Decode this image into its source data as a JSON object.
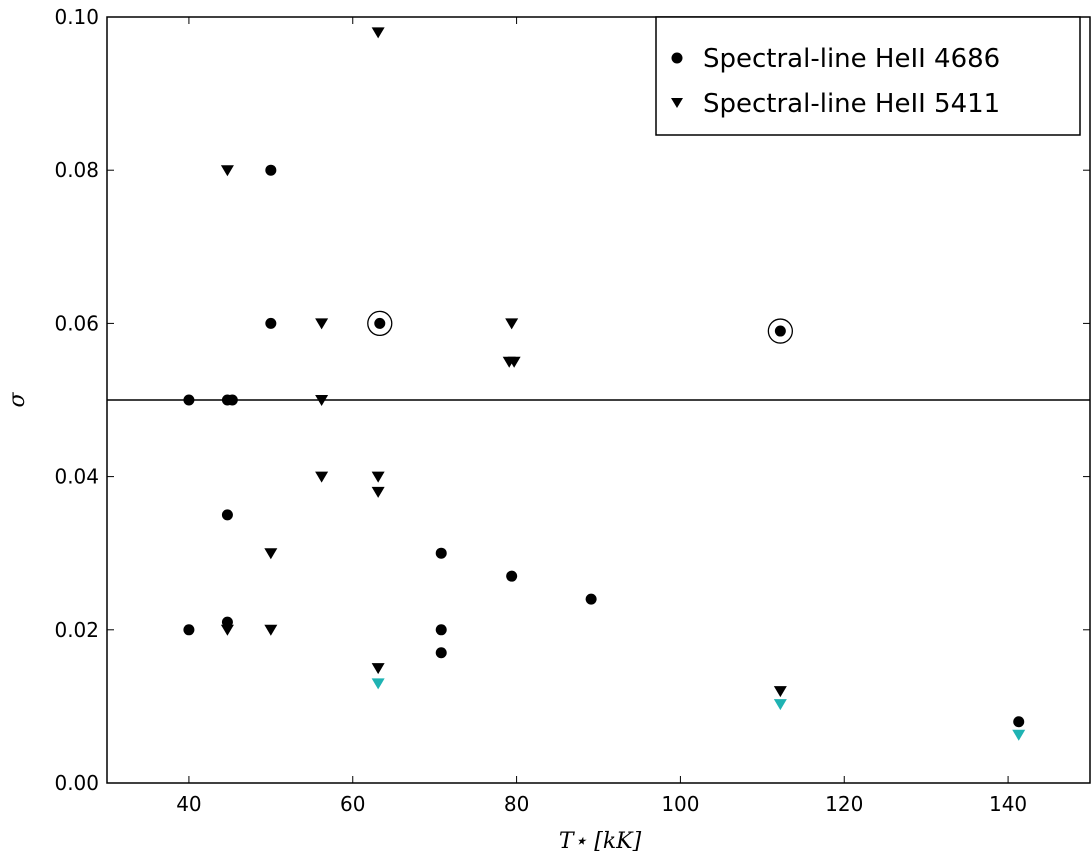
{
  "chart_data": {
    "type": "scatter",
    "xlabel": "T⋆ [kK]",
    "ylabel": "σ",
    "xlim": [
      30,
      150
    ],
    "ylim": [
      0.0,
      0.1
    ],
    "xticks": [
      "40",
      "60",
      "80",
      "100",
      "120",
      "140"
    ],
    "yticks": [
      "0.00",
      "0.02",
      "0.04",
      "0.06",
      "0.08",
      "0.10"
    ],
    "grid": false,
    "legend_position": "top-right",
    "reference_line_y": 0.05,
    "colors": {
      "marker": "#000000",
      "cyan_marker": "#1fb3b3",
      "axes": "#000000"
    },
    "series": [
      {
        "name": "Spectral-line HeII 4686",
        "marker": "circle",
        "points": [
          [
            40,
            0.05
          ],
          [
            44.7,
            0.05
          ],
          [
            45.3,
            0.05
          ],
          [
            50,
            0.08
          ],
          [
            50,
            0.06
          ],
          [
            63.3,
            0.06
          ],
          [
            112.2,
            0.059
          ],
          [
            44.7,
            0.035
          ],
          [
            40,
            0.02
          ],
          [
            44.7,
            0.021
          ],
          [
            70.8,
            0.03
          ],
          [
            79.4,
            0.027
          ],
          [
            89.1,
            0.024
          ],
          [
            70.8,
            0.02
          ],
          [
            70.8,
            0.017
          ],
          [
            141.3,
            0.008
          ]
        ]
      },
      {
        "name": "Spectral-line HeII 5411",
        "marker": "triangle-down",
        "points": [
          [
            63.1,
            0.098
          ],
          [
            44.7,
            0.08
          ],
          [
            56.2,
            0.06
          ],
          [
            79.4,
            0.06
          ],
          [
            79.1,
            0.055
          ],
          [
            79.7,
            0.055
          ],
          [
            56.2,
            0.05
          ],
          [
            56.2,
            0.04
          ],
          [
            63.1,
            0.04
          ],
          [
            63.1,
            0.038
          ],
          [
            50,
            0.03
          ],
          [
            44.7,
            0.02
          ],
          [
            50,
            0.02
          ],
          [
            63.1,
            0.015
          ],
          [
            112.2,
            0.012
          ]
        ]
      },
      {
        "marker": "triangle-down-cyan",
        "points": [
          [
            63.1,
            0.013
          ],
          [
            112.2,
            0.0103
          ],
          [
            141.3,
            0.0063
          ]
        ]
      }
    ],
    "circled_points": [
      [
        63.3,
        0.06
      ],
      [
        112.2,
        0.059
      ]
    ]
  }
}
